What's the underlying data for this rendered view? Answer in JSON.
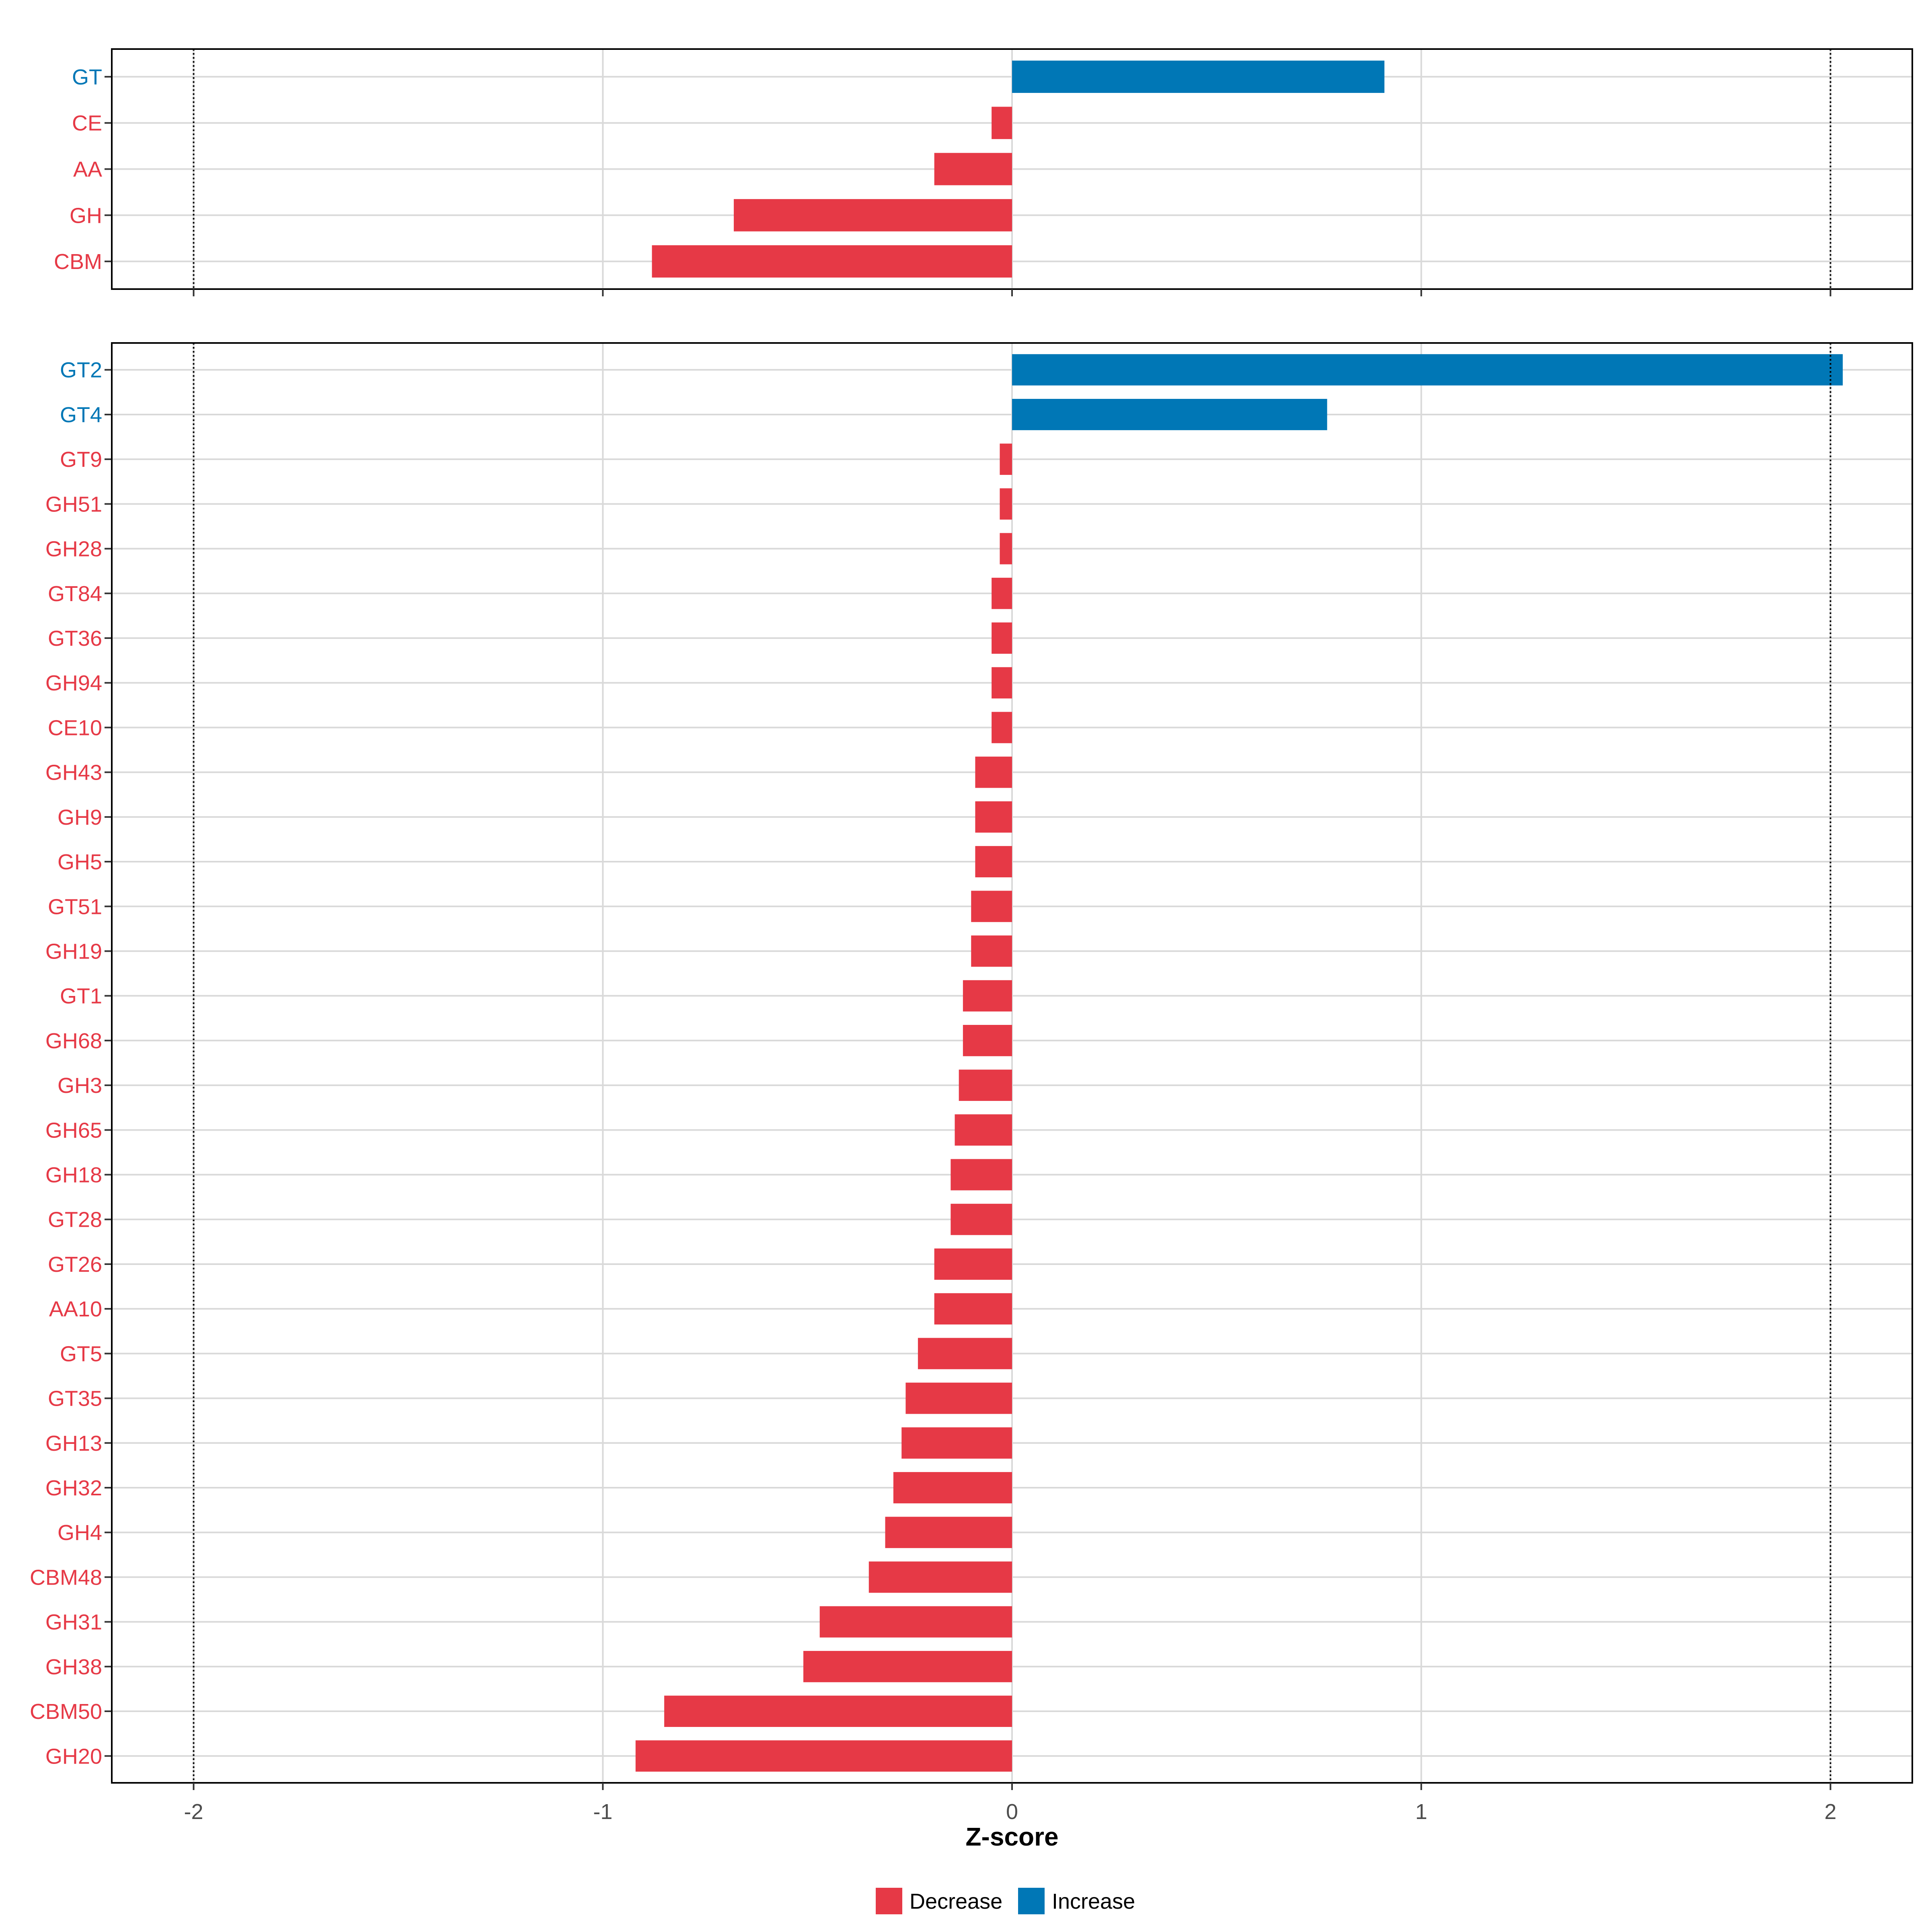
{
  "colors": {
    "decrease": "#e63946",
    "increase": "#0077b6",
    "grid": "#d9d9d9",
    "panel_border": "#000000",
    "threshold_line": "#000000",
    "tick_text": "#4d4d4d"
  },
  "chart_data": {
    "type": "bar",
    "orientation": "horizontal",
    "xlabel": "Z-score",
    "xlim": [
      -2.2,
      2.2
    ],
    "x_ticks": [
      -2,
      -1,
      0,
      1,
      2
    ],
    "x_tick_labels": [
      "-2",
      "-1",
      "0",
      "1",
      "2"
    ],
    "threshold_lines": [
      -2,
      2
    ],
    "grid": true,
    "legend": {
      "placement": "bottom",
      "entries": [
        {
          "key": "decrease",
          "label": "Decrease"
        },
        {
          "key": "increase",
          "label": "Increase"
        }
      ]
    },
    "panels": [
      {
        "name": "class",
        "categories": [
          "GT",
          "CE",
          "AA",
          "GH",
          "CBM"
        ],
        "values": [
          0.91,
          -0.05,
          -0.19,
          -0.68,
          -0.88
        ],
        "direction": [
          "increase",
          "decrease",
          "decrease",
          "decrease",
          "decrease"
        ]
      },
      {
        "name": "family",
        "categories": [
          "GT2",
          "GT4",
          "GT9",
          "GH51",
          "GH28",
          "GT84",
          "GT36",
          "GH94",
          "CE10",
          "GH43",
          "GH9",
          "GH5",
          "GT51",
          "GH19",
          "GT1",
          "GH68",
          "GH3",
          "GH65",
          "GH18",
          "GT28",
          "GT26",
          "AA10",
          "GT5",
          "GT35",
          "GH13",
          "GH32",
          "GH4",
          "CBM48",
          "GH31",
          "GH38",
          "CBM50",
          "GH20"
        ],
        "values": [
          2.03,
          0.77,
          -0.03,
          -0.03,
          -0.03,
          -0.05,
          -0.05,
          -0.05,
          -0.05,
          -0.09,
          -0.09,
          -0.09,
          -0.1,
          -0.1,
          -0.12,
          -0.12,
          -0.13,
          -0.14,
          -0.15,
          -0.15,
          -0.19,
          -0.19,
          -0.23,
          -0.26,
          -0.27,
          -0.29,
          -0.31,
          -0.35,
          -0.47,
          -0.51,
          -0.85,
          -0.92
        ],
        "direction": [
          "increase",
          "increase",
          "decrease",
          "decrease",
          "decrease",
          "decrease",
          "decrease",
          "decrease",
          "decrease",
          "decrease",
          "decrease",
          "decrease",
          "decrease",
          "decrease",
          "decrease",
          "decrease",
          "decrease",
          "decrease",
          "decrease",
          "decrease",
          "decrease",
          "decrease",
          "decrease",
          "decrease",
          "decrease",
          "decrease",
          "decrease",
          "decrease",
          "decrease",
          "decrease",
          "decrease",
          "decrease"
        ]
      }
    ]
  }
}
